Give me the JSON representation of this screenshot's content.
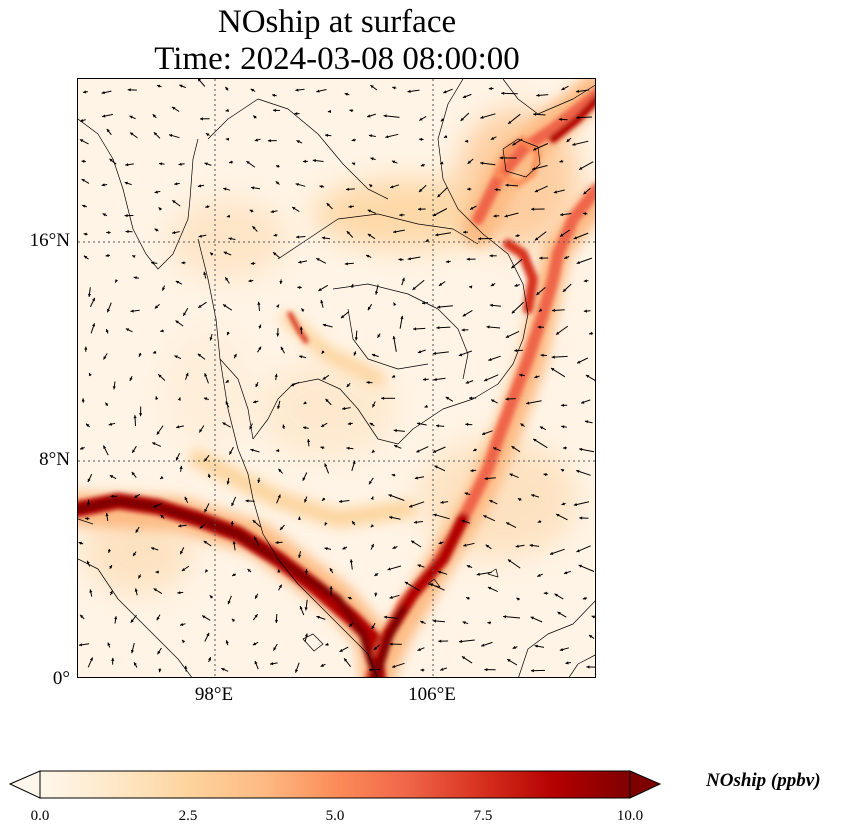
{
  "title": {
    "line1": "NOship at surface",
    "line2": "Time: 2024-03-08 08:00:00"
  },
  "map": {
    "lat_labels": [
      "16°N",
      "8°N",
      "0°"
    ],
    "lon_labels": [
      "98°E",
      "106°E"
    ],
    "extent": {
      "lon_min": 93,
      "lon_max": 112,
      "lat_min": 0,
      "lat_max": 22
    },
    "gridlines": {
      "lons": [
        98,
        106
      ],
      "lats": [
        16,
        8
      ],
      "style": "dotted"
    },
    "field": "NOship surface concentration",
    "vectors": "wind arrows"
  },
  "colorbar": {
    "label": "NOship (ppbv)",
    "ticks": [
      "0.0",
      "2.5",
      "5.0",
      "7.5",
      "10.0"
    ],
    "range": [
      0,
      10
    ],
    "colormap": "OrRd",
    "colors": [
      "#fff7ec",
      "#fee8c8",
      "#fdd49e",
      "#fdbb84",
      "#fc8d59",
      "#ef6548",
      "#d7301f",
      "#b30000",
      "#7f0000"
    ],
    "extend": "both"
  }
}
